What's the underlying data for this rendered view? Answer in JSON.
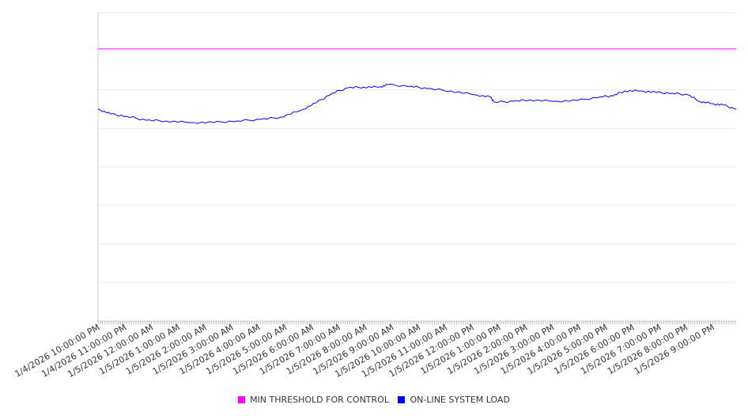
{
  "chart_data": {
    "type": "line",
    "title": "",
    "xlabel": "",
    "ylabel": "",
    "x_unit": "hours since 1/4/2026 10:00:00 PM",
    "xlim": [
      0,
      23.88
    ],
    "ylim": [
      0,
      8
    ],
    "y_gridlines": 8,
    "grid": true,
    "legend_placement": "bottom",
    "x_tick_labels": [
      "1/4/2026 10:00:00 PM",
      "1/4/2026 11:00:00 PM",
      "1/5/2026 12:00:00 AM",
      "1/5/2026 1:00:00 AM",
      "1/5/2026 2:00:00 AM",
      "1/5/2026 3:00:00 AM",
      "1/5/2026 4:00:00 AM",
      "1/5/2026 5:00:00 AM",
      "1/5/2026 6:00:00 AM",
      "1/5/2026 7:00:00 AM",
      "1/5/2026 8:00:00 AM",
      "1/5/2026 9:00:00 AM",
      "1/5/2026 10:00:00 AM",
      "1/5/2026 11:00:00 AM",
      "1/5/2026 12:00:00 PM",
      "1/5/2026 1:00:00 PM",
      "1/5/2026 2:00:00 PM",
      "1/5/2026 3:00:00 PM",
      "1/5/2026 4:00:00 PM",
      "1/5/2026 5:00:00 PM",
      "1/5/2026 6:00:00 PM",
      "1/5/2026 7:00:00 PM",
      "1/5/2026 8:00:00 PM",
      "1/5/2026 9:00:00 PM"
    ],
    "series": [
      {
        "name": "MIN THRESHOLD FOR CONTROL",
        "color": "#ff00ff",
        "x": [
          0,
          23.88
        ],
        "values": [
          7.06,
          7.06
        ]
      },
      {
        "name": "ON-LINE SYSTEM LOAD",
        "color": "#0000ff",
        "x": [
          0,
          0.47,
          1.07,
          1.8,
          2.54,
          3.43,
          4.32,
          5.21,
          6.09,
          6.83,
          7.57,
          8.16,
          8.76,
          9.35,
          9.94,
          10.53,
          10.83,
          11.72,
          12.31,
          13.2,
          14.09,
          14.68,
          14.83,
          15.56,
          16.15,
          17.04,
          17.93,
          18.82,
          19.26,
          19.7,
          20.3,
          20.89,
          21.48,
          22.07,
          22.51,
          22.96,
          23.4,
          23.88
        ],
        "values": [
          5.5,
          5.37,
          5.31,
          5.21,
          5.19,
          5.15,
          5.15,
          5.19,
          5.23,
          5.29,
          5.46,
          5.66,
          5.91,
          6.05,
          6.07,
          6.07,
          6.13,
          6.09,
          6.03,
          5.97,
          5.87,
          5.81,
          5.68,
          5.7,
          5.74,
          5.7,
          5.72,
          5.82,
          5.84,
          5.97,
          5.97,
          5.93,
          5.91,
          5.87,
          5.7,
          5.64,
          5.6,
          5.5
        ]
      }
    ]
  }
}
